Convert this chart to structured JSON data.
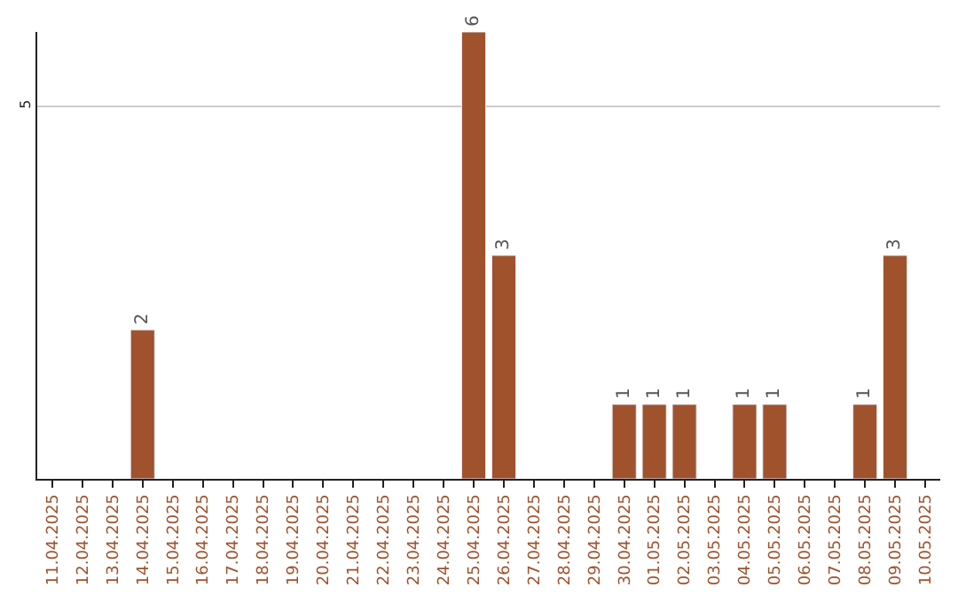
{
  "chart_data": {
    "type": "bar",
    "categories": [
      "11.04.2025",
      "12.04.2025",
      "13.04.2025",
      "14.04.2025",
      "15.04.2025",
      "16.04.2025",
      "17.04.2025",
      "18.04.2025",
      "19.04.2025",
      "20.04.2025",
      "21.04.2025",
      "22.04.2025",
      "23.04.2025",
      "24.04.2025",
      "25.04.2025",
      "26.04.2025",
      "27.04.2025",
      "28.04.2025",
      "29.04.2025",
      "30.04.2025",
      "01.05.2025",
      "02.05.2025",
      "03.05.2025",
      "04.05.2025",
      "05.05.2025",
      "06.05.2025",
      "07.05.2025",
      "08.05.2025",
      "09.05.2025",
      "10.05.2025"
    ],
    "values": [
      null,
      null,
      null,
      2,
      null,
      null,
      null,
      null,
      null,
      null,
      null,
      null,
      null,
      null,
      6,
      3,
      null,
      null,
      null,
      1,
      1,
      1,
      null,
      1,
      1,
      null,
      null,
      1,
      3,
      null
    ],
    "color": "#a0522d",
    "ylim": [
      0,
      6
    ],
    "yticks": [
      5
    ],
    "grid": "y",
    "data_labels": true
  }
}
